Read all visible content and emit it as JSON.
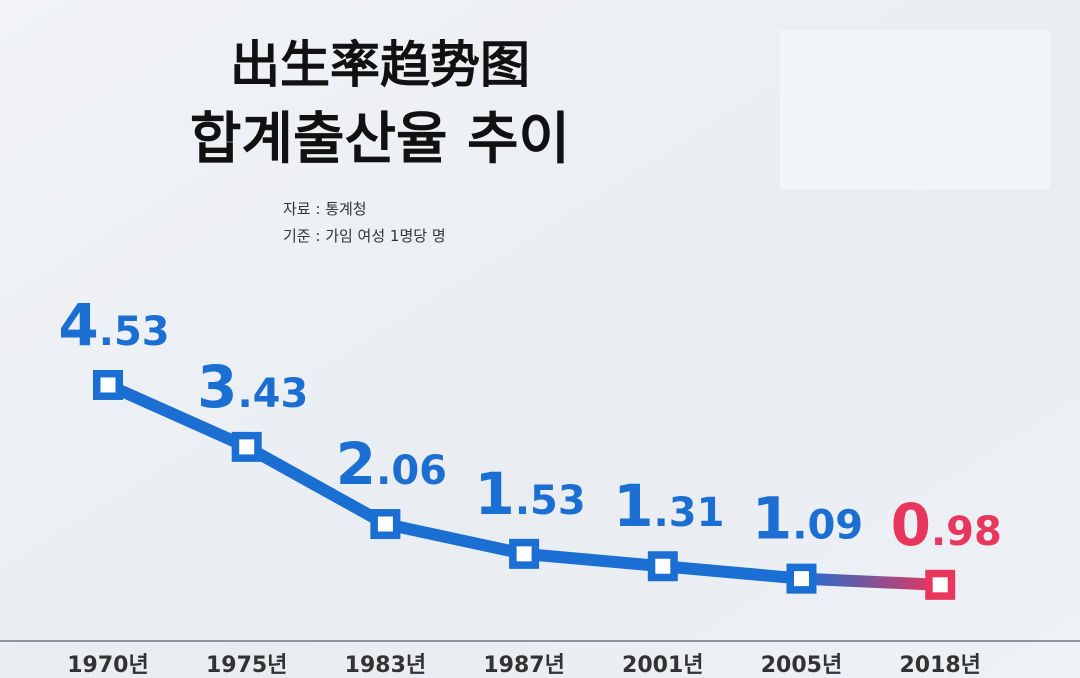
{
  "chart_data": {
    "type": "line",
    "title": "出生率趋势图",
    "subtitle": "합계출산율 추이",
    "source": "자료 : 통계청",
    "unit_note": "기준 : 가임 여성 1명당 명",
    "categories": [
      "1970년",
      "1975년",
      "1983년",
      "1987년",
      "2001년",
      "2005년",
      "2018년"
    ],
    "values": [
      4.53,
      3.43,
      2.06,
      1.53,
      1.31,
      1.09,
      0.98
    ],
    "color": "#1b6fd2",
    "last_color": "#e8365d"
  }
}
